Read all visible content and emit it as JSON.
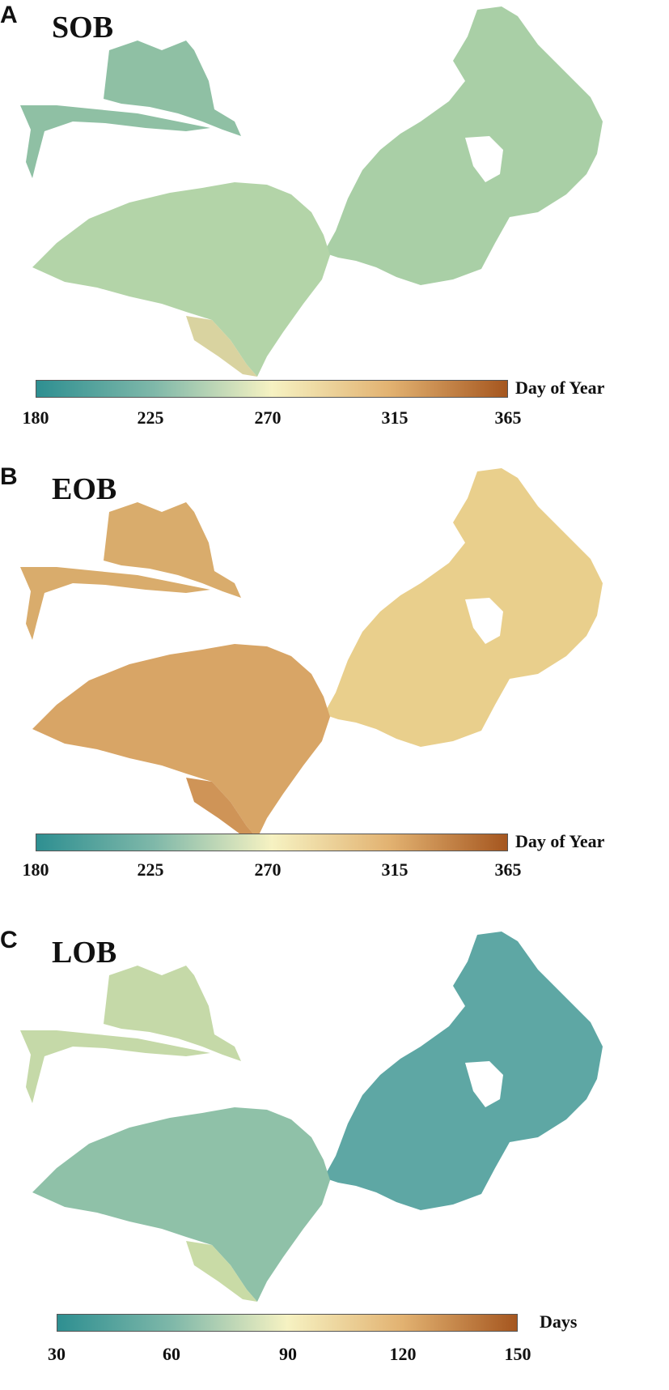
{
  "panels": [
    {
      "letter": "A",
      "title": "SOB",
      "colorbar": {
        "unit": "Day of Year",
        "min": 180,
        "max": 365,
        "ticks": [
          "180",
          "225",
          "270",
          "315",
          "365"
        ]
      },
      "palette": {
        "low": "#2e8f91",
        "mid": "#f6f2c2",
        "high": "#a5561f"
      },
      "fill": {
        "east": "#a9cfa6",
        "west": "#b3d4a8",
        "northwest": "#8fc0a4",
        "south": "#d9d3a0"
      }
    },
    {
      "letter": "B",
      "title": "EOB",
      "colorbar": {
        "unit": "Day of Year",
        "min": 180,
        "max": 365,
        "ticks": [
          "180",
          "225",
          "270",
          "315",
          "365"
        ]
      },
      "palette": {
        "low": "#2e8f91",
        "mid": "#f6f2c2",
        "high": "#a5561f"
      },
      "fill": {
        "east": "#e9cf8c",
        "west": "#d8a566",
        "northwest": "#d9ac6c",
        "south": "#cf9457"
      }
    },
    {
      "letter": "C",
      "title": "LOB",
      "colorbar": {
        "unit": "Days",
        "min": 30,
        "max": 150,
        "ticks": [
          "30",
          "60",
          "90",
          "120",
          "150"
        ]
      },
      "palette": {
        "low": "#2e8f91",
        "mid": "#f6f2c2",
        "high": "#a5561f"
      },
      "fill": {
        "east": "#5ea7a4",
        "west": "#8fc1a8",
        "northwest": "#c5d9a8",
        "south": "#c9dba6"
      }
    }
  ]
}
